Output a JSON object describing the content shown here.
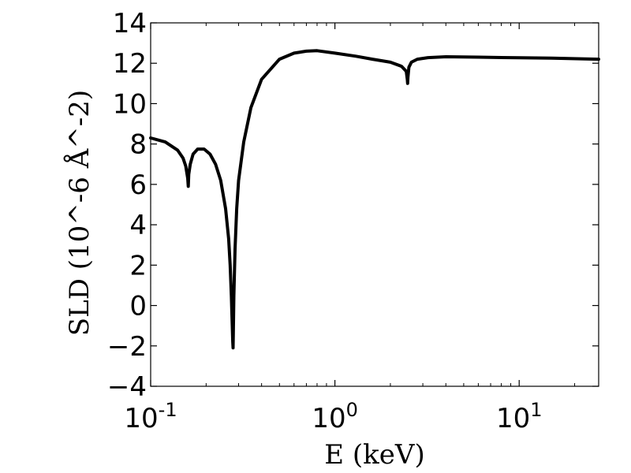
{
  "chart_data": {
    "type": "line",
    "title": "",
    "xlabel": "E (keV)",
    "ylabel": "SLD (10^-6 Å^-2)",
    "xscale": "log",
    "xlim": [
      0.1,
      27
    ],
    "ylim": [
      -4,
      14
    ],
    "grid": false,
    "legend": "none",
    "x_ticks": [
      {
        "value": 0.1,
        "base": "10",
        "exp": "-1"
      },
      {
        "value": 1,
        "base": "10",
        "exp": "0"
      },
      {
        "value": 10,
        "base": "10",
        "exp": "1"
      }
    ],
    "y_ticks": [
      {
        "value": -4,
        "label": "−4"
      },
      {
        "value": -2,
        "label": "−2"
      },
      {
        "value": 0,
        "label": "0"
      },
      {
        "value": 2,
        "label": "2"
      },
      {
        "value": 4,
        "label": "4"
      },
      {
        "value": 6,
        "label": "6"
      },
      {
        "value": 8,
        "label": "8"
      },
      {
        "value": 10,
        "label": "10"
      },
      {
        "value": 12,
        "label": "12"
      },
      {
        "value": 14,
        "label": "14"
      }
    ],
    "line_color": "#000000",
    "series": [
      {
        "x": [
          0.1,
          0.12,
          0.14,
          0.15,
          0.155,
          0.159,
          0.16,
          0.161,
          0.164,
          0.17,
          0.18,
          0.195,
          0.21,
          0.225,
          0.24,
          0.255,
          0.265,
          0.27,
          0.274,
          0.277,
          0.279,
          0.28,
          0.281,
          0.283,
          0.287,
          0.293,
          0.3,
          0.32,
          0.35,
          0.4,
          0.5,
          0.6,
          0.7,
          0.8,
          1.0,
          1.3,
          1.6,
          2.0,
          2.3,
          2.44,
          2.47,
          2.48,
          2.49,
          2.52,
          2.6,
          2.8,
          3.2,
          4.0,
          6.0,
          10.0,
          15.0,
          27.0
        ],
        "y": [
          8.3,
          8.1,
          7.7,
          7.3,
          6.9,
          6.3,
          5.9,
          6.5,
          7.0,
          7.5,
          7.75,
          7.75,
          7.5,
          7.0,
          6.2,
          4.8,
          3.3,
          2.0,
          0.5,
          -0.9,
          -1.8,
          -2.1,
          -1.4,
          0.5,
          2.8,
          4.8,
          6.2,
          8.1,
          9.8,
          11.2,
          12.2,
          12.5,
          12.6,
          12.62,
          12.5,
          12.35,
          12.2,
          12.05,
          11.85,
          11.6,
          11.2,
          11.0,
          11.3,
          11.8,
          12.05,
          12.2,
          12.28,
          12.32,
          12.3,
          12.27,
          12.25,
          12.2
        ]
      }
    ]
  }
}
